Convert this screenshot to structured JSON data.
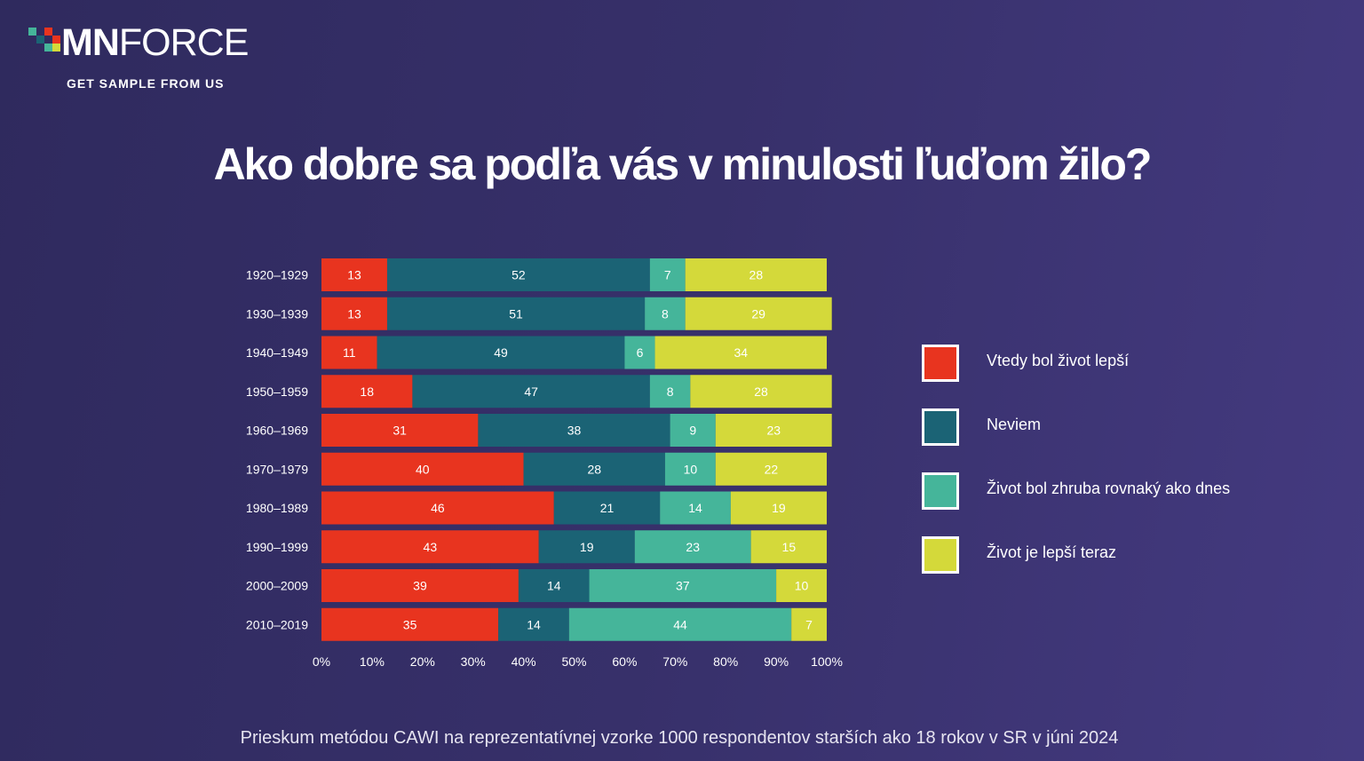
{
  "brand": {
    "name_bold": "MN",
    "name_light": "FORCE",
    "tagline": "GET SAMPLE FROM US"
  },
  "footnote": "Prieskum metódou CAWI na reprezentatívnej vzorke 1000 respondentov starších ako 18 rokov v SR v júni 2024",
  "chart_data": {
    "type": "bar",
    "orientation": "horizontal",
    "stacked": true,
    "title": "Ako dobre sa podľa vás v minulosti ľuďom žilo?",
    "categories": [
      "1920–1929",
      "1930–1939",
      "1940–1949",
      "1950–1959",
      "1960–1969",
      "1970–1979",
      "1980–1989",
      "1990–1999",
      "2000–2009",
      "2010–2019"
    ],
    "series": [
      {
        "name": "Vtedy bol život lepší",
        "color": "#e8341f",
        "values": [
          13,
          13,
          11,
          18,
          31,
          40,
          46,
          43,
          39,
          35
        ]
      },
      {
        "name": "Neviem",
        "color": "#1b6375",
        "values": [
          52,
          51,
          49,
          47,
          38,
          28,
          21,
          19,
          14,
          14
        ]
      },
      {
        "name": "Život bol zhruba rovnaký ako dnes",
        "color": "#45b59a",
        "values": [
          7,
          8,
          6,
          8,
          9,
          10,
          14,
          23,
          37,
          44
        ]
      },
      {
        "name": "Život je lepší teraz",
        "color": "#d4d93a",
        "values": [
          28,
          29,
          34,
          28,
          23,
          22,
          19,
          15,
          10,
          7
        ]
      }
    ],
    "xlim": [
      0,
      100
    ],
    "x_ticks": [
      "0%",
      "10%",
      "20%",
      "30%",
      "40%",
      "50%",
      "60%",
      "70%",
      "80%",
      "90%",
      "100%"
    ],
    "legend_position": "right",
    "grid": false
  }
}
